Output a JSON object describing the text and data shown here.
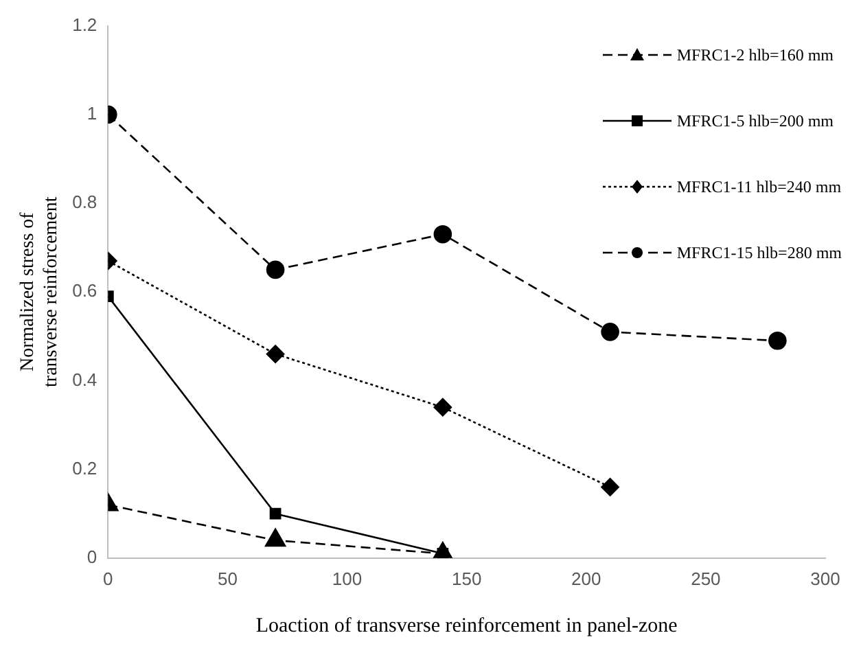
{
  "chart_data": {
    "type": "line",
    "xlabel": "Loaction of transverse reinforcement in panel-zone",
    "ylabel": "Normalized stress of transverse reinforcement",
    "xlim": [
      0,
      300
    ],
    "xticks": [
      0,
      50,
      100,
      150,
      200,
      250,
      300
    ],
    "ylim": [
      0,
      1.2
    ],
    "yticks": [
      0,
      0.2,
      0.4,
      0.6,
      0.8,
      1,
      1.2
    ],
    "legend": "top right",
    "series": [
      {
        "name": "MFRC1-2 hlb=160 mm",
        "color": "#000000",
        "line_style": "dashed",
        "marker": "triangle",
        "x": [
          0,
          70,
          140
        ],
        "values": [
          0.12,
          0.04,
          0.01
        ]
      },
      {
        "name": "MFRC1-5 hlb=200 mm",
        "color": "#000000",
        "line_style": "solid",
        "marker": "square",
        "x": [
          0,
          70,
          140
        ],
        "values": [
          0.59,
          0.1,
          0.01
        ]
      },
      {
        "name": "MFRC1-11 hlb=240 mm",
        "color": "#000000",
        "line_style": "dotted",
        "marker": "diamond",
        "x": [
          0,
          70,
          140,
          210
        ],
        "values": [
          0.67,
          0.46,
          0.34,
          0.16
        ]
      },
      {
        "name": "MFRC1-15 hlb=280 mm",
        "color": "#000000",
        "line_style": "dashed",
        "marker": "circle",
        "x": [
          0,
          70,
          140,
          210,
          280
        ],
        "values": [
          1.0,
          0.65,
          0.73,
          0.51,
          0.49
        ]
      }
    ]
  }
}
